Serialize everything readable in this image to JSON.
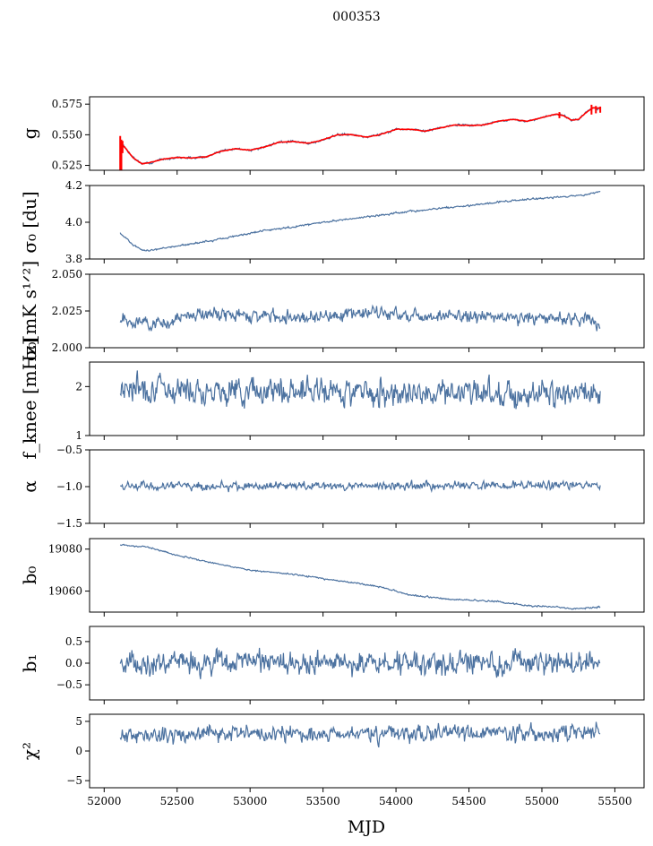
{
  "suptitle": "000353",
  "chart_data": [
    {
      "type": "line",
      "id": "g",
      "ylabel": "g",
      "ylim": [
        0.521,
        0.581
      ],
      "yticks": [
        0.525,
        0.55,
        0.575
      ],
      "ytick_labels": [
        "0.525",
        "0.550",
        "0.575"
      ],
      "series": [
        {
          "name": "g",
          "color": "#4c72a0",
          "shape": [
            [
              52110,
              0.543
            ],
            [
              52140,
              0.54
            ],
            [
              52200,
              0.531
            ],
            [
              52260,
              0.5262
            ],
            [
              52320,
              0.5275
            ],
            [
              52400,
              0.53
            ],
            [
              52500,
              0.5315
            ],
            [
              52600,
              0.531
            ],
            [
              52700,
              0.532
            ],
            [
              52800,
              0.5365
            ],
            [
              52900,
              0.5385
            ],
            [
              53000,
              0.5375
            ],
            [
              53100,
              0.54
            ],
            [
              53200,
              0.544
            ],
            [
              53300,
              0.5445
            ],
            [
              53400,
              0.543
            ],
            [
              53500,
              0.546
            ],
            [
              53600,
              0.55
            ],
            [
              53700,
              0.55
            ],
            [
              53800,
              0.548
            ],
            [
              53900,
              0.5505
            ],
            [
              54000,
              0.5545
            ],
            [
              54100,
              0.5545
            ],
            [
              54200,
              0.553
            ],
            [
              54300,
              0.5555
            ],
            [
              54400,
              0.558
            ],
            [
              54500,
              0.5575
            ],
            [
              54600,
              0.558
            ],
            [
              54700,
              0.561
            ],
            [
              54800,
              0.5625
            ],
            [
              54900,
              0.561
            ],
            [
              55000,
              0.564
            ],
            [
              55100,
              0.567
            ],
            [
              55150,
              0.5655
            ],
            [
              55200,
              0.562
            ],
            [
              55250,
              0.5625
            ],
            [
              55300,
              0.568
            ],
            [
              55350,
              0.572
            ],
            [
              55400,
              0.5715
            ]
          ],
          "wiggle": 0.0007,
          "seed": 3
        },
        {
          "name": "g_fit",
          "color": "#ff0000",
          "shape": [
            [
              52110,
              0.543
            ],
            [
              52140,
              0.54
            ],
            [
              52200,
              0.531
            ],
            [
              52260,
              0.5262
            ],
            [
              52320,
              0.5275
            ],
            [
              52400,
              0.53
            ],
            [
              52500,
              0.5315
            ],
            [
              52600,
              0.531
            ],
            [
              52700,
              0.532
            ],
            [
              52800,
              0.5365
            ],
            [
              52900,
              0.5385
            ],
            [
              53000,
              0.5375
            ],
            [
              53100,
              0.54
            ],
            [
              53200,
              0.544
            ],
            [
              53300,
              0.5445
            ],
            [
              53400,
              0.543
            ],
            [
              53500,
              0.546
            ],
            [
              53600,
              0.55
            ],
            [
              53700,
              0.55
            ],
            [
              53800,
              0.548
            ],
            [
              53900,
              0.5505
            ],
            [
              54000,
              0.5545
            ],
            [
              54100,
              0.5545
            ],
            [
              54200,
              0.553
            ],
            [
              54300,
              0.5555
            ],
            [
              54400,
              0.558
            ],
            [
              54500,
              0.5575
            ],
            [
              54600,
              0.558
            ],
            [
              54700,
              0.561
            ],
            [
              54800,
              0.5625
            ],
            [
              54900,
              0.561
            ],
            [
              55000,
              0.564
            ],
            [
              55100,
              0.567
            ],
            [
              55150,
              0.5655
            ],
            [
              55200,
              0.562
            ],
            [
              55250,
              0.5625
            ],
            [
              55300,
              0.568
            ],
            [
              55350,
              0.572
            ],
            [
              55400,
              0.5715
            ]
          ],
          "wiggle": 0.0002,
          "seed": 4,
          "spikes": [
            [
              52110,
              0.521,
              0.549
            ],
            [
              52118,
              0.521,
              0.546
            ],
            [
              52126,
              0.535,
              0.545
            ],
            [
              55120,
              0.5635,
              0.5685
            ],
            [
              55340,
              0.5665,
              0.5745
            ],
            [
              55370,
              0.5675,
              0.5735
            ],
            [
              55400,
              0.568,
              0.573
            ]
          ]
        }
      ]
    },
    {
      "type": "line",
      "id": "sigma0_du",
      "ylabel": "σ₀ [du]",
      "ylim": [
        3.8,
        4.2
      ],
      "yticks": [
        3.8,
        4.0,
        4.2
      ],
      "ytick_labels": [
        "3.8",
        "4.0",
        "4.2"
      ],
      "series": [
        {
          "name": "sigma0",
          "color": "#4c72a0",
          "shape": [
            [
              52110,
              3.94
            ],
            [
              52200,
              3.875
            ],
            [
              52280,
              3.845
            ],
            [
              52350,
              3.85
            ],
            [
              52500,
              3.87
            ],
            [
              52700,
              3.895
            ],
            [
              52900,
              3.925
            ],
            [
              53100,
              3.955
            ],
            [
              53300,
              3.975
            ],
            [
              53500,
              4.0
            ],
            [
              53700,
              4.02
            ],
            [
              53900,
              4.04
            ],
            [
              54100,
              4.06
            ],
            [
              54300,
              4.075
            ],
            [
              54500,
              4.09
            ],
            [
              54700,
              4.11
            ],
            [
              54900,
              4.125
            ],
            [
              55100,
              4.135
            ],
            [
              55300,
              4.15
            ],
            [
              55400,
              4.165
            ]
          ],
          "wiggle": 0.004,
          "seed": 5
        }
      ]
    },
    {
      "type": "line",
      "id": "sigma0_mk",
      "ylabel": "σ₀[mK s¹ᐟ²]",
      "ylim": [
        2.0,
        2.05
      ],
      "yticks": [
        2.0,
        2.025,
        2.05
      ],
      "ytick_labels": [
        "2.000",
        "2.025",
        "2.050"
      ],
      "series": [
        {
          "name": "sigma0_mk",
          "color": "#4c72a0",
          "shape": [
            [
              52110,
              2.019
            ],
            [
              52400,
              2.016
            ],
            [
              52600,
              2.023
            ],
            [
              53000,
              2.022
            ],
            [
              53400,
              2.021
            ],
            [
              53800,
              2.024
            ],
            [
              54200,
              2.022
            ],
            [
              54600,
              2.021
            ],
            [
              55000,
              2.02
            ],
            [
              55300,
              2.02
            ],
            [
              55400,
              2.016
            ]
          ],
          "wiggle": 0.0035,
          "seed": 6
        }
      ]
    },
    {
      "type": "line",
      "id": "fknee",
      "ylabel": "f_knee [mHz]",
      "ylim": [
        1.0,
        2.5
      ],
      "yticks": [
        1,
        2
      ],
      "ytick_labels": [
        "1",
        "2"
      ],
      "series": [
        {
          "name": "fknee",
          "color": "#4c72a0",
          "shape": [
            [
              52110,
              2.0
            ],
            [
              52500,
              1.95
            ],
            [
              53000,
              1.92
            ],
            [
              53500,
              1.9
            ],
            [
              54000,
              1.9
            ],
            [
              54500,
              1.88
            ],
            [
              55000,
              1.85
            ],
            [
              55400,
              1.85
            ]
          ],
          "wiggle": 0.22,
          "seed": 7
        }
      ]
    },
    {
      "type": "line",
      "id": "alpha",
      "ylabel": "α",
      "ylim": [
        -1.5,
        -0.5
      ],
      "yticks": [
        -1.5,
        -1.0,
        -0.5
      ],
      "ytick_labels": [
        "−1.5",
        "−1.0",
        "−0.5"
      ],
      "series": [
        {
          "name": "alpha",
          "color": "#4c72a0",
          "shape": [
            [
              52110,
              -1.0
            ],
            [
              55400,
              -0.98
            ]
          ],
          "wiggle": 0.045,
          "seed": 8
        }
      ]
    },
    {
      "type": "line",
      "id": "b0",
      "ylabel": "b₀",
      "ylim": [
        19050,
        19085
      ],
      "yticks": [
        19060,
        19080
      ],
      "ytick_labels": [
        "19060",
        "19080"
      ],
      "series": [
        {
          "name": "b0",
          "color": "#4c72a0",
          "shape": [
            [
              52110,
              19082
            ],
            [
              52300,
              19081
            ],
            [
              52500,
              19077
            ],
            [
              52700,
              19074
            ],
            [
              53000,
              19070
            ],
            [
              53300,
              19068
            ],
            [
              53600,
              19065
            ],
            [
              53900,
              19062
            ],
            [
              54100,
              19058
            ],
            [
              54400,
              19056
            ],
            [
              54700,
              19055
            ],
            [
              54900,
              19053
            ],
            [
              55100,
              19052.5
            ],
            [
              55200,
              19051.5
            ],
            [
              55400,
              19052.5
            ]
          ],
          "wiggle": 0.3,
          "seed": 9
        }
      ]
    },
    {
      "type": "line",
      "id": "b1",
      "ylabel": "b₁",
      "ylim": [
        -0.85,
        0.85
      ],
      "yticks": [
        -0.5,
        0.0,
        0.5
      ],
      "ytick_labels": [
        "−0.5",
        "0.0",
        "0.5"
      ],
      "series": [
        {
          "name": "b1",
          "color": "#4c72a0",
          "shape": [
            [
              52110,
              0.0
            ],
            [
              55400,
              0.0
            ]
          ],
          "wiggle": 0.22,
          "seed": 10
        }
      ]
    },
    {
      "type": "line",
      "id": "chi2",
      "ylabel": "χ²",
      "ylim": [
        -6.2,
        6.2
      ],
      "yticks": [
        -5,
        0,
        5
      ],
      "ytick_labels": [
        "−5",
        "0",
        "5"
      ],
      "series": [
        {
          "name": "chi2",
          "color": "#4c72a0",
          "shape": [
            [
              52110,
              2.5
            ],
            [
              52500,
              2.8
            ],
            [
              53000,
              3.0
            ],
            [
              53500,
              2.8
            ],
            [
              54000,
              3.0
            ],
            [
              54500,
              3.0
            ],
            [
              55000,
              3.0
            ],
            [
              55400,
              3.2
            ]
          ],
          "wiggle": 1.1,
          "seed": 11
        }
      ]
    }
  ],
  "x_axis": {
    "label": "MJD",
    "xlim": [
      51900,
      55700
    ],
    "ticks": [
      52000,
      52500,
      53000,
      53500,
      54000,
      54500,
      55000,
      55500
    ],
    "tick_labels": [
      "52000",
      "52500",
      "53000",
      "53500",
      "54000",
      "54500",
      "55000",
      "55500"
    ]
  }
}
